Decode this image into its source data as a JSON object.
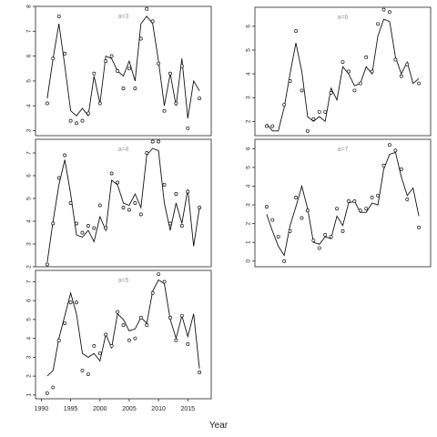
{
  "chart_data": [
    {
      "type": "scatter",
      "panel_label": "a=3",
      "xlim": [
        1989,
        2019
      ],
      "ylim": [
        2.8,
        8
      ],
      "yticks": [
        3,
        4,
        5,
        6,
        7,
        8
      ],
      "xticks": [],
      "points": [
        [
          1991,
          4.1
        ],
        [
          1992,
          5.9
        ],
        [
          1993,
          7.6
        ],
        [
          1994,
          6.1
        ],
        [
          1995,
          3.4
        ],
        [
          1996,
          3.3
        ],
        [
          1997,
          3.4
        ],
        [
          1998,
          3.7
        ],
        [
          1999,
          5.3
        ],
        [
          2000,
          4.1
        ],
        [
          2001,
          5.8
        ],
        [
          2002,
          6
        ],
        [
          2003,
          5.4
        ],
        [
          2004,
          4.7
        ],
        [
          2005,
          5.5
        ],
        [
          2006,
          4.7
        ],
        [
          2007,
          6.7
        ],
        [
          2008,
          7.9
        ],
        [
          2009,
          7.4
        ],
        [
          2010,
          5.7
        ],
        [
          2011,
          3.8
        ],
        [
          2012,
          5.3
        ],
        [
          2013,
          4.1
        ],
        [
          2014,
          5.6
        ],
        [
          2015,
          3.1
        ],
        [
          2017,
          4.3
        ]
      ],
      "line": [
        [
          1991,
          4.3
        ],
        [
          1992,
          5.9
        ],
        [
          1993,
          7.3
        ],
        [
          1994,
          5.6
        ],
        [
          1995,
          3.8
        ],
        [
          1996,
          3.6
        ],
        [
          1997,
          3.9
        ],
        [
          1998,
          3.6
        ],
        [
          1999,
          5.2
        ],
        [
          2000,
          4.1
        ],
        [
          2001,
          6
        ],
        [
          2002,
          5.9
        ],
        [
          2003,
          5.4
        ],
        [
          2004,
          5.2
        ],
        [
          2005,
          5.8
        ],
        [
          2006,
          5
        ],
        [
          2007,
          7.3
        ],
        [
          2008,
          7.6
        ],
        [
          2009,
          7.3
        ],
        [
          2010,
          5.8
        ],
        [
          2011,
          4
        ],
        [
          2012,
          5.3
        ],
        [
          2013,
          4
        ],
        [
          2014,
          5.9
        ],
        [
          2015,
          3.5
        ],
        [
          2016,
          5
        ],
        [
          2017,
          4.6
        ]
      ]
    },
    {
      "type": "scatter",
      "panel_label": "a=6",
      "xlim": [
        1989,
        2019
      ],
      "ylim": [
        1.4,
        6.8
      ],
      "yticks": [
        2,
        3,
        4,
        5,
        6
      ],
      "xticks": [],
      "points": [
        [
          1991,
          1.8
        ],
        [
          1992,
          1.8
        ],
        [
          1994,
          2.7
        ],
        [
          1995,
          3.7
        ],
        [
          1996,
          5.8
        ],
        [
          1997,
          3.3
        ],
        [
          1998,
          1.6
        ],
        [
          1999,
          2.1
        ],
        [
          2000,
          2.4
        ],
        [
          2001,
          2.4
        ],
        [
          2002,
          3.2
        ],
        [
          2004,
          4.5
        ],
        [
          2005,
          4.1
        ],
        [
          2006,
          3.3
        ],
        [
          2007,
          3.6
        ],
        [
          2008,
          4.7
        ],
        [
          2009,
          4.1
        ],
        [
          2010,
          6.1
        ],
        [
          2011,
          6.7
        ],
        [
          2012,
          6.6
        ],
        [
          2013,
          4.6
        ],
        [
          2014,
          3.9
        ],
        [
          2015,
          4.4
        ],
        [
          2017,
          3.6
        ]
      ],
      "line": [
        [
          1991,
          1.9
        ],
        [
          1992,
          1.6
        ],
        [
          1993,
          1.6
        ],
        [
          1994,
          2.6
        ],
        [
          1995,
          4
        ],
        [
          1996,
          5.3
        ],
        [
          1997,
          4.1
        ],
        [
          1998,
          2.2
        ],
        [
          1999,
          2
        ],
        [
          2000,
          2.2
        ],
        [
          2001,
          2
        ],
        [
          2002,
          3.4
        ],
        [
          2003,
          2.9
        ],
        [
          2004,
          4.3
        ],
        [
          2005,
          4
        ],
        [
          2006,
          3.5
        ],
        [
          2007,
          3.6
        ],
        [
          2008,
          4.3
        ],
        [
          2009,
          4
        ],
        [
          2010,
          5.6
        ],
        [
          2011,
          6.3
        ],
        [
          2012,
          6.2
        ],
        [
          2013,
          4.7
        ],
        [
          2014,
          4
        ],
        [
          2015,
          4.5
        ],
        [
          2016,
          3.6
        ],
        [
          2017,
          3.8
        ]
      ]
    },
    {
      "type": "scatter",
      "panel_label": "a=4",
      "xlim": [
        1989,
        2019
      ],
      "ylim": [
        2,
        7.6
      ],
      "yticks": [
        2,
        3,
        4,
        5,
        6,
        7
      ],
      "xticks": [],
      "points": [
        [
          1991,
          2.1
        ],
        [
          1992,
          3.9
        ],
        [
          1993,
          5.9
        ],
        [
          1994,
          6.9
        ],
        [
          1995,
          4.8
        ],
        [
          1996,
          3.9
        ],
        [
          1997,
          3.5
        ],
        [
          1998,
          3.8
        ],
        [
          1999,
          3.7
        ],
        [
          2000,
          4.7
        ],
        [
          2001,
          3.7
        ],
        [
          2002,
          6.1
        ],
        [
          2003,
          5.7
        ],
        [
          2004,
          4.6
        ],
        [
          2005,
          4.5
        ],
        [
          2006,
          4.8
        ],
        [
          2007,
          4.3
        ],
        [
          2008,
          7
        ],
        [
          2009,
          7.5
        ],
        [
          2010,
          7.5
        ],
        [
          2011,
          5.6
        ],
        [
          2012,
          3.9
        ],
        [
          2013,
          5.2
        ],
        [
          2014,
          3.8
        ],
        [
          2015,
          5.3
        ],
        [
          2017,
          4.6
        ]
      ],
      "line": [
        [
          1991,
          2.2
        ],
        [
          1992,
          4
        ],
        [
          1993,
          5.6
        ],
        [
          1994,
          6.7
        ],
        [
          1995,
          5.2
        ],
        [
          1996,
          3.4
        ],
        [
          1997,
          3.3
        ],
        [
          1998,
          3.6
        ],
        [
          1999,
          3.1
        ],
        [
          2000,
          4.2
        ],
        [
          2001,
          3.6
        ],
        [
          2002,
          5.8
        ],
        [
          2003,
          5.6
        ],
        [
          2004,
          4.8
        ],
        [
          2005,
          4.7
        ],
        [
          2006,
          5.2
        ],
        [
          2007,
          4.6
        ],
        [
          2008,
          6.9
        ],
        [
          2009,
          7.2
        ],
        [
          2010,
          7.1
        ],
        [
          2011,
          4.8
        ],
        [
          2012,
          3.6
        ],
        [
          2013,
          4.8
        ],
        [
          2014,
          3.9
        ],
        [
          2015,
          5.4
        ],
        [
          2016,
          2.9
        ],
        [
          2017,
          4.6
        ]
      ]
    },
    {
      "type": "scatter",
      "panel_label": "a=7",
      "xlim": [
        1989,
        2019
      ],
      "ylim": [
        -0.3,
        6.5
      ],
      "yticks": [
        0,
        1,
        2,
        3,
        4,
        5,
        6
      ],
      "xticks": [],
      "points": [
        [
          1991,
          2.9
        ],
        [
          1992,
          2.2
        ],
        [
          1993,
          1.3
        ],
        [
          1994,
          0
        ],
        [
          1995,
          1.6
        ],
        [
          1996,
          3.4
        ],
        [
          1997,
          2.3
        ],
        [
          1998,
          2.7
        ],
        [
          1999,
          1.1
        ],
        [
          2000,
          0.7
        ],
        [
          2001,
          1.4
        ],
        [
          2002,
          1.3
        ],
        [
          2003,
          2.8
        ],
        [
          2004,
          1.6
        ],
        [
          2005,
          3.2
        ],
        [
          2006,
          3.2
        ],
        [
          2007,
          2.7
        ],
        [
          2008,
          2.8
        ],
        [
          2009,
          3.4
        ],
        [
          2010,
          3.5
        ],
        [
          2011,
          5.1
        ],
        [
          2012,
          6.2
        ],
        [
          2013,
          5.9
        ],
        [
          2014,
          4.9
        ],
        [
          2015,
          3.3
        ],
        [
          2017,
          1.8
        ]
      ],
      "line": [
        [
          1991,
          2.5
        ],
        [
          1992,
          1.6
        ],
        [
          1993,
          0.8
        ],
        [
          1994,
          0.3
        ],
        [
          1995,
          1.9
        ],
        [
          1996,
          2.9
        ],
        [
          1997,
          4
        ],
        [
          1998,
          2.8
        ],
        [
          1999,
          1
        ],
        [
          2000,
          0.9
        ],
        [
          2001,
          1.3
        ],
        [
          2002,
          1.2
        ],
        [
          2003,
          2.4
        ],
        [
          2004,
          1.9
        ],
        [
          2005,
          3.1
        ],
        [
          2006,
          3.2
        ],
        [
          2007,
          2.6
        ],
        [
          2008,
          2.6
        ],
        [
          2009,
          3.1
        ],
        [
          2010,
          3
        ],
        [
          2011,
          4.9
        ],
        [
          2012,
          5.7
        ],
        [
          2013,
          5.8
        ],
        [
          2014,
          4.5
        ],
        [
          2015,
          3.5
        ],
        [
          2016,
          3.9
        ],
        [
          2017,
          2.4
        ]
      ]
    },
    {
      "type": "scatter",
      "panel_label": "a=5",
      "xlim": [
        1989,
        2019
      ],
      "ylim": [
        0.8,
        7.6
      ],
      "yticks": [
        1,
        2,
        3,
        4,
        5,
        6,
        7
      ],
      "xticks": [
        1990,
        1995,
        2000,
        2005,
        2010,
        2015
      ],
      "points": [
        [
          1991,
          1.1
        ],
        [
          1992,
          1.4
        ],
        [
          1993,
          3.9
        ],
        [
          1994,
          4.8
        ],
        [
          1995,
          5.9
        ],
        [
          1996,
          5.9
        ],
        [
          1997,
          2.3
        ],
        [
          1998,
          2.1
        ],
        [
          1999,
          3.6
        ],
        [
          2000,
          3.2
        ],
        [
          2001,
          4.2
        ],
        [
          2002,
          3.6
        ],
        [
          2003,
          5.4
        ],
        [
          2004,
          4.7
        ],
        [
          2005,
          3.9
        ],
        [
          2006,
          4
        ],
        [
          2007,
          5.1
        ],
        [
          2008,
          4.7
        ],
        [
          2009,
          6.4
        ],
        [
          2010,
          7.4
        ],
        [
          2011,
          7
        ],
        [
          2012,
          5.1
        ],
        [
          2013,
          3.9
        ],
        [
          2014,
          5.2
        ],
        [
          2015,
          3.7
        ],
        [
          2017,
          2.2
        ]
      ],
      "line": [
        [
          1991,
          2
        ],
        [
          1992,
          2.3
        ],
        [
          1993,
          4
        ],
        [
          1994,
          5.2
        ],
        [
          1995,
          6.4
        ],
        [
          1996,
          5.3
        ],
        [
          1997,
          3.2
        ],
        [
          1998,
          3
        ],
        [
          1999,
          3.2
        ],
        [
          2000,
          2.8
        ],
        [
          2001,
          4.2
        ],
        [
          2002,
          3.5
        ],
        [
          2003,
          5.3
        ],
        [
          2004,
          5
        ],
        [
          2005,
          4.4
        ],
        [
          2006,
          4.5
        ],
        [
          2007,
          5.1
        ],
        [
          2008,
          4.8
        ],
        [
          2009,
          6.5
        ],
        [
          2010,
          7.1
        ],
        [
          2011,
          6.9
        ],
        [
          2012,
          5
        ],
        [
          2013,
          4
        ],
        [
          2014,
          5.2
        ],
        [
          2015,
          4.1
        ],
        [
          2016,
          5.3
        ],
        [
          2017,
          2.4
        ]
      ]
    }
  ],
  "xlabel": "Year"
}
